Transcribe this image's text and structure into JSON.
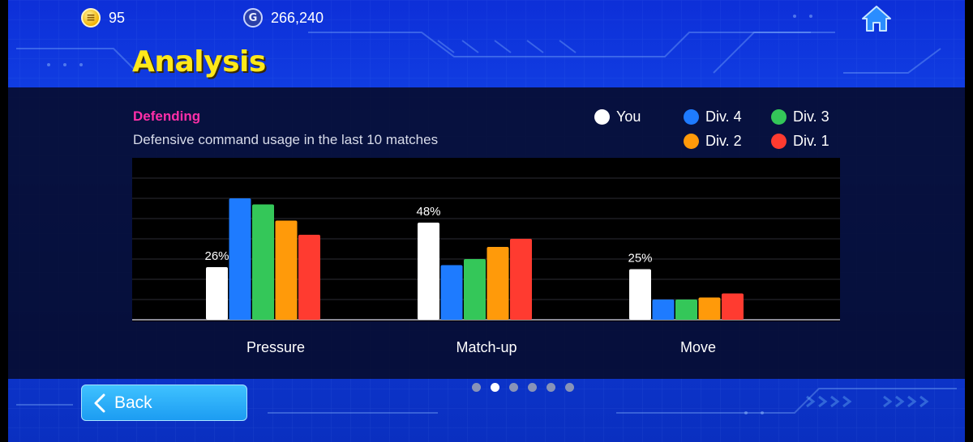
{
  "hud": {
    "coins": "95",
    "gp": "266,240",
    "coin_icon_glyph": "≡",
    "gp_icon_glyph": "G"
  },
  "page": {
    "title": "Analysis",
    "section_title": "Defending",
    "section_subtitle": "Defensive command usage in the last 10 matches"
  },
  "legend": [
    {
      "name": "You",
      "color": "#ffffff"
    },
    {
      "name": "Div. 4",
      "color": "#1e7bff"
    },
    {
      "name": "Div. 3",
      "color": "#34c759"
    },
    {
      "name": "Div. 2",
      "color": "#ff9a0a"
    },
    {
      "name": "Div. 1",
      "color": "#ff3b30"
    }
  ],
  "chart_data": {
    "type": "bar",
    "categories": [
      "Pressure",
      "Match-up",
      "Move"
    ],
    "series": [
      {
        "name": "You",
        "color": "#ffffff",
        "values": [
          26,
          48,
          25
        ]
      },
      {
        "name": "Div. 4",
        "color": "#1e7bff",
        "values": [
          60,
          27,
          10
        ]
      },
      {
        "name": "Div. 3",
        "color": "#34c759",
        "values": [
          57,
          30,
          10
        ]
      },
      {
        "name": "Div. 2",
        "color": "#ff9a0a",
        "values": [
          49,
          36,
          11
        ]
      },
      {
        "name": "Div. 1",
        "color": "#ff3b30",
        "values": [
          42,
          40,
          13
        ]
      }
    ],
    "data_labels": {
      "series": "You",
      "values": [
        "26%",
        "48%",
        "25%"
      ]
    },
    "ylim": [
      0,
      80
    ],
    "grid": true,
    "legend_placement": "top-right"
  },
  "pager": {
    "count": 6,
    "active": 1
  },
  "back_label": "Back",
  "colors": {
    "accent_title": "#ffe81a",
    "section": "#ff2fa8"
  }
}
